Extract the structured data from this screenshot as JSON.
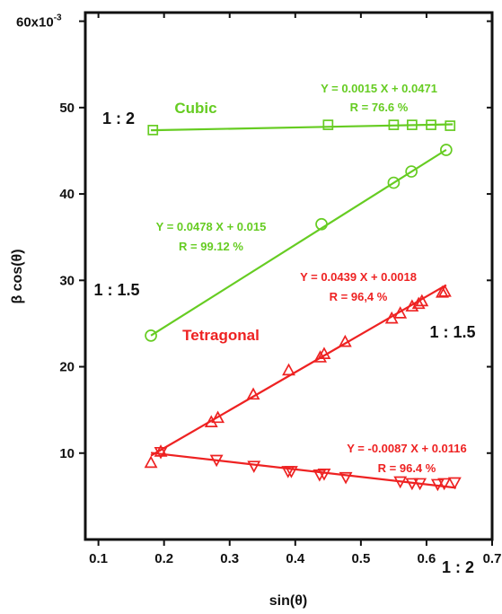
{
  "chart_data": {
    "type": "scatter",
    "xlabel": "sin(θ)",
    "ylabel": "β cos(θ)",
    "y_multiplier_label": "60x10",
    "y_multiplier_exp": "-3",
    "xlim": [
      0.08,
      0.7
    ],
    "ylim": [
      0,
      61
    ],
    "x_ticks": [
      0.1,
      0.2,
      0.3,
      0.4,
      0.5,
      0.6,
      0.7
    ],
    "x_tick_labels": [
      "0.1",
      "0.2",
      "0.3",
      "0.4",
      "0.5",
      "0.6",
      "0.7"
    ],
    "y_ticks": [
      10,
      20,
      30,
      40,
      50,
      60
    ],
    "y_tick_labels": [
      "10",
      "20",
      "30",
      "40",
      "50",
      "60x10"
    ],
    "grid": false,
    "colors": {
      "cubic": "#66cc22",
      "tetragonal": "#ee2222",
      "text": "#111111"
    },
    "series": [
      {
        "phase": "Cubic",
        "ratio": "1 : 2",
        "marker": "square",
        "color": "#66cc22",
        "fit": {
          "slope": 0.0015,
          "intercept": 0.0471,
          "x_range": [
            0.18,
            0.64
          ]
        },
        "points": [
          [
            0.183,
            47.4
          ],
          [
            0.45,
            48.0
          ],
          [
            0.55,
            48.0
          ],
          [
            0.578,
            48.0
          ],
          [
            0.607,
            48.0
          ],
          [
            0.636,
            47.9
          ]
        ]
      },
      {
        "phase": "Cubic",
        "ratio": "1 : 1.5",
        "marker": "circle",
        "color": "#66cc22",
        "fit": {
          "slope": 0.0478,
          "intercept": 0.015,
          "x_range": [
            0.18,
            0.63
          ]
        },
        "points": [
          [
            0.18,
            23.6
          ],
          [
            0.44,
            36.5
          ],
          [
            0.55,
            41.3
          ],
          [
            0.577,
            42.6
          ],
          [
            0.63,
            45.1
          ]
        ]
      },
      {
        "phase": "Tetragonal",
        "ratio": "1 : 1.5",
        "marker": "triangle-up",
        "color": "#ee2222",
        "fit": {
          "slope": 0.0439,
          "intercept": 0.0018,
          "x_range": [
            0.18,
            0.63
          ]
        },
        "points": [
          [
            0.18,
            8.9
          ],
          [
            0.195,
            10.2
          ],
          [
            0.272,
            13.6
          ],
          [
            0.282,
            14.1
          ],
          [
            0.336,
            16.8
          ],
          [
            0.39,
            19.6
          ],
          [
            0.438,
            21.1
          ],
          [
            0.444,
            21.5
          ],
          [
            0.476,
            22.9
          ],
          [
            0.547,
            25.6
          ],
          [
            0.56,
            26.2
          ],
          [
            0.578,
            27.0
          ],
          [
            0.588,
            27.3
          ],
          [
            0.593,
            27.6
          ],
          [
            0.624,
            28.6
          ],
          [
            0.628,
            28.7
          ]
        ]
      },
      {
        "phase": "Tetragonal",
        "ratio": "1 : 2",
        "marker": "triangle-down",
        "color": "#ee2222",
        "fit": {
          "slope": -0.0087,
          "intercept": 0.0116,
          "x_range": [
            0.18,
            0.645
          ]
        },
        "points": [
          [
            0.195,
            10.1
          ],
          [
            0.28,
            9.2
          ],
          [
            0.337,
            8.5
          ],
          [
            0.389,
            7.9
          ],
          [
            0.394,
            7.9
          ],
          [
            0.437,
            7.5
          ],
          [
            0.444,
            7.6
          ],
          [
            0.477,
            7.2
          ],
          [
            0.56,
            6.7
          ],
          [
            0.578,
            6.5
          ],
          [
            0.59,
            6.5
          ],
          [
            0.617,
            6.4
          ],
          [
            0.627,
            6.5
          ],
          [
            0.643,
            6.6
          ]
        ]
      }
    ],
    "annotations": {
      "cubic_title": "Cubic",
      "tetragonal_title": "Tetragonal",
      "cubic_12_ratio": "1 : 2",
      "cubic_15_ratio": "1 : 1.5",
      "tet_15_ratio": "1 : 1.5",
      "tet_12_ratio": "1 : 2",
      "cubic_12_eq": "Y = 0.0015 X + 0.0471",
      "cubic_12_r": "R = 76.6 %",
      "cubic_15_eq": "Y = 0.0478 X + 0.015",
      "cubic_15_r": "R = 99.12 %",
      "tet_15_eq": "Y = 0.0439 X + 0.0018",
      "tet_15_r": "R = 96,4 %",
      "tet_12_eq": "Y = -0.0087 X + 0.0116",
      "tet_12_r": "R = 96.4 %"
    }
  }
}
